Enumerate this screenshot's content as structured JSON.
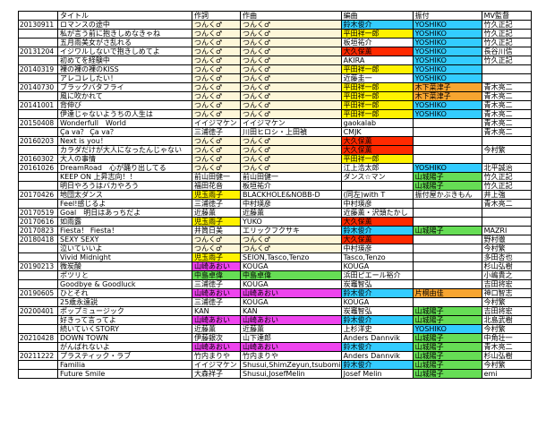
{
  "colors": {
    "beige": "#fdf6d8",
    "yellow": "#fff200",
    "red": "#ff2a00",
    "pink": "#ee44ee",
    "green": "#66dd55",
    "blue": "#33ccff",
    "orange": "#f7a530",
    "white": "#ffffff"
  },
  "headers": [
    "",
    "タイトル",
    "作詞",
    "作曲",
    "編曲",
    "振付",
    "MV監督"
  ],
  "rows": [
    {
      "date": "20130911",
      "title": "ロマンスの途中",
      "lyrics": "つんく♂",
      "composer": "つんく♂",
      "arranger": "鈴木俊介",
      "choreo": "YOSHIKO",
      "director": "竹久正記",
      "bg": {
        "lyrics": "beige",
        "composer": "beige",
        "arranger": "blue",
        "choreo": "blue"
      }
    },
    {
      "date": "",
      "title": "私が言う前に抱きしめなきゃね",
      "lyrics": "つんく♂",
      "composer": "つんく♂",
      "arranger": "平田祥一郎",
      "choreo": "YOSHIKO",
      "director": "竹久正記",
      "bg": {
        "lyrics": "beige",
        "composer": "beige",
        "arranger": "yellow",
        "choreo": "blue"
      }
    },
    {
      "date": "",
      "title": "五月雨美女がさ乱れる",
      "lyrics": "つんく♂",
      "composer": "つんく♂",
      "arranger": "板垣祐介",
      "choreo": "YOSHIKO",
      "director": "竹久正記",
      "bg": {
        "lyrics": "beige",
        "composer": "beige",
        "choreo": "blue"
      }
    },
    {
      "date": "20131204",
      "title": "イジワルしないで抱きしめてよ",
      "lyrics": "つんく♂",
      "composer": "つんく♂",
      "arranger": "大久保薫",
      "choreo": "YOSHIKO",
      "director": "長谷川信",
      "bg": {
        "lyrics": "beige",
        "composer": "beige",
        "arranger": "red",
        "choreo": "blue"
      }
    },
    {
      "date": "",
      "title": "初めてを経験中",
      "lyrics": "つんく♂",
      "composer": "つんく♂",
      "arranger": "AKIRA",
      "choreo": "YOSHIKO",
      "director": "竹久正記",
      "bg": {
        "lyrics": "beige",
        "composer": "beige",
        "choreo": "blue"
      }
    },
    {
      "date": "20140319",
      "title": "裸の裸の裸のKISS",
      "lyrics": "つんく♂",
      "composer": "つんく♂",
      "arranger": "平田祥一郎",
      "choreo": "YOSHIKO",
      "director": "",
      "bg": {
        "lyrics": "beige",
        "composer": "beige",
        "arranger": "yellow",
        "choreo": "blue"
      }
    },
    {
      "date": "",
      "title": "アレコレしたい！",
      "lyrics": "つんく♂",
      "composer": "つんく♂",
      "arranger": "近藤圭一",
      "choreo": "YOSHIKO",
      "director": "",
      "bg": {
        "lyrics": "beige",
        "composer": "beige",
        "choreo": "blue"
      }
    },
    {
      "date": "20140730",
      "title": "ブラックバタフライ",
      "lyrics": "つんく♂",
      "composer": "つんく♂",
      "arranger": "平田祥一郎",
      "choreo": "木下菜津子",
      "director": "青木亮二",
      "bg": {
        "lyrics": "beige",
        "composer": "beige",
        "arranger": "yellow",
        "choreo": "orange"
      }
    },
    {
      "date": "",
      "title": "風に吹かれて",
      "lyrics": "つんく♂",
      "composer": "つんく♂",
      "arranger": "平田祥一郎",
      "choreo": "木下菜津子",
      "director": "青木亮二",
      "bg": {
        "lyrics": "beige",
        "composer": "beige",
        "arranger": "yellow",
        "choreo": "orange"
      }
    },
    {
      "date": "20141001",
      "title": "背伸び",
      "lyrics": "つんく♂",
      "composer": "つんく♂",
      "arranger": "平田祥一郎",
      "choreo": "YOSHIKO",
      "director": "青木亮二",
      "bg": {
        "lyrics": "beige",
        "composer": "beige",
        "arranger": "yellow",
        "choreo": "blue"
      }
    },
    {
      "date": "",
      "title": "伊達じゃないようちの人生は",
      "lyrics": "つんく♂",
      "composer": "つんく♂",
      "arranger": "平田祥一郎",
      "choreo": "YOSHIKO",
      "director": "青木亮二",
      "bg": {
        "lyrics": "beige",
        "composer": "beige",
        "arranger": "yellow",
        "choreo": "blue"
      }
    },
    {
      "date": "20150408",
      "title": "Wonderfull　World",
      "lyrics": "イイジマケン",
      "composer": "イイジマケン",
      "arranger": "gaokalab",
      "choreo": "",
      "director": "青木亮二",
      "bg": {}
    },
    {
      "date": "",
      "title": "Ça va？ Ça va？",
      "lyrics": "三浦徳子",
      "composer": "川田ヒロシ・上田禎",
      "arranger": "CMJK",
      "choreo": "",
      "director": "青木亮二",
      "bg": {}
    },
    {
      "date": "20160203",
      "title": "Next is you！",
      "lyrics": "つんく♂",
      "composer": "つんく♂",
      "arranger": "大久保薫",
      "choreo": "",
      "director": "",
      "bg": {
        "lyrics": "beige",
        "composer": "beige",
        "arranger": "red"
      }
    },
    {
      "date": "",
      "title": "カラダだけが大人になったんじゃない",
      "lyrics": "つんく♂",
      "composer": "つんく♂",
      "arranger": "大久保薫",
      "choreo": "",
      "director": "今村繁",
      "bg": {
        "lyrics": "beige",
        "composer": "beige",
        "arranger": "red"
      }
    },
    {
      "date": "20160302",
      "title": "大人の事情",
      "lyrics": "つんく♂",
      "composer": "つんく♂",
      "arranger": "平田祥一郎",
      "choreo": "",
      "director": "",
      "bg": {
        "lyrics": "beige",
        "composer": "beige",
        "arranger": "yellow"
      }
    },
    {
      "date": "20161026",
      "title": "DreamRoad　心が踊り出してる",
      "lyrics": "つんく♂",
      "composer": "つんく♂",
      "arranger": "江上浩太郎",
      "choreo": "YOSHIKO",
      "director": "北平誠治",
      "bg": {
        "lyrics": "beige",
        "composer": "beige",
        "choreo": "blue"
      }
    },
    {
      "date": "",
      "title": "KEEP ON 上昇志向！！",
      "lyrics": "前山田健一",
      "composer": "前山田健一",
      "arranger": "ダンス☆マン",
      "choreo": "山城陽子",
      "director": "竹久正記",
      "bg": {
        "choreo": "green"
      }
    },
    {
      "date": "",
      "title": "明日やろうはバカやろう",
      "lyrics": "福田花音",
      "composer": "板垣祐介",
      "arranger": "",
      "choreo": "山城陽子",
      "director": "竹久正記",
      "bg": {
        "choreo": "green"
      }
    },
    {
      "date": "20170426",
      "title": "地団太ダンス",
      "lyrics": "児玉雨子",
      "composer": "BLACKHOLE&NOBB-D",
      "arranger": "(同左)with T",
      "choreo": "振付屋かぶきもん",
      "director": "井上強",
      "bg": {
        "lyrics": "yellow"
      }
    },
    {
      "date": "",
      "title": "Feel!感じるよ",
      "lyrics": "三浦徳子",
      "composer": "中村瑛彦",
      "arranger": "中村瑛彦",
      "choreo": "",
      "director": "青木亮二",
      "bg": {}
    },
    {
      "date": "20170519",
      "title": "Goal　明日はあっちだよ",
      "lyrics": "近藤薫",
      "composer": "近藤薫",
      "arranger": "近藤薫・沢頭たかし",
      "choreo": "",
      "director": "",
      "bg": {}
    },
    {
      "date": "20170616",
      "title": "如雨露",
      "lyrics": "児玉雨子",
      "composer": "YUKO",
      "arranger": "大久保薫",
      "choreo": "",
      "director": "",
      "bg": {
        "lyrics": "yellow",
        "arranger": "red"
      }
    },
    {
      "date": "20170823",
      "title": "Fiesta！ Fiesta！",
      "lyrics": "井筒日美",
      "composer": "エリックフクサキ",
      "arranger": "鈴木俊介",
      "choreo": "山城陽子",
      "director": "MAZRI",
      "bg": {
        "arranger": "blue",
        "choreo": "green"
      }
    },
    {
      "date": "20180418",
      "title": "SEXY SEXY",
      "lyrics": "つんく♂",
      "composer": "つんく♂",
      "arranger": "大久保薫",
      "choreo": "",
      "director": "野村徹",
      "bg": {
        "lyrics": "beige",
        "composer": "beige",
        "arranger": "red"
      }
    },
    {
      "date": "",
      "title": "泣いていいよ",
      "lyrics": "つんく♂",
      "composer": "つんく♂",
      "arranger": "中村瑛彦",
      "choreo": "",
      "director": "今村繁",
      "bg": {
        "lyrics": "beige",
        "composer": "beige"
      }
    },
    {
      "date": "",
      "title": "Vivid Midnight",
      "lyrics": "児玉雨子",
      "composer": "SEION,Tasco,Tenzo",
      "arranger": "Tasco,Tenzo",
      "choreo": "",
      "director": "多田杏也",
      "bg": {
        "lyrics": "yellow"
      }
    },
    {
      "date": "20190213",
      "title": "微炭酸",
      "lyrics": "山崎あおい",
      "composer": "KOUGA",
      "arranger": "KOUGA",
      "choreo": "",
      "director": "杉山弘樹",
      "bg": {
        "lyrics": "pink"
      }
    },
    {
      "date": "",
      "title": "ポツリと",
      "lyrics": "中島卓偉",
      "composer": "中島卓偉",
      "arranger": "浜田ピエール裕介",
      "choreo": "",
      "director": "小嶋貴之",
      "bg": {
        "lyrics": "green",
        "composer": "green"
      }
    },
    {
      "date": "",
      "title": "Goodbye & Goodluck",
      "lyrics": "三浦徳子",
      "composer": "KOUGA",
      "arranger": "炭竈智弘",
      "choreo": "",
      "director": "吉田将宏",
      "bg": {}
    },
    {
      "date": "20190605",
      "title": "ひとそれ",
      "lyrics": "山崎あおい",
      "composer": "山崎あおい",
      "arranger": "鈴木俊介",
      "choreo": "片桐由佳",
      "director": "神口智志",
      "bg": {
        "lyrics": "pink",
        "composer": "pink",
        "arranger": "blue",
        "choreo": "orange"
      }
    },
    {
      "date": "",
      "title": "25歳永遠説",
      "lyrics": "三浦徳子",
      "composer": "KOUGA",
      "arranger": "KOUGA",
      "choreo": "",
      "director": "今村繁",
      "bg": {}
    },
    {
      "date": "20200401",
      "title": "ポップミュージック",
      "lyrics": "KAN",
      "composer": "KAN",
      "arranger": "炭竈智弘",
      "choreo": "山城陽子",
      "director": "吉田将宏",
      "bg": {
        "choreo": "green"
      }
    },
    {
      "date": "",
      "title": "好きって言ってよ",
      "lyrics": "山崎あおい",
      "composer": "山崎あおい",
      "arranger": "鈴木俊介",
      "choreo": "山城陽子",
      "director": "北島武樹",
      "bg": {
        "lyrics": "pink",
        "composer": "pink",
        "arranger": "blue",
        "choreo": "green"
      }
    },
    {
      "date": "",
      "title": "続いていくSTORY",
      "lyrics": "近藤薫",
      "composer": "近藤薫",
      "arranger": "上杉洋史",
      "choreo": "YOSHIKO",
      "director": "今村繁",
      "bg": {
        "choreo": "blue"
      }
    },
    {
      "date": "20210428",
      "title": "DOWN TOWN",
      "lyrics": "伊藤銀次",
      "composer": "山下達郎",
      "arranger": "Anders Dannvik",
      "choreo": "山城陽子",
      "director": "中角壮一",
      "bg": {
        "choreo": "green"
      }
    },
    {
      "date": "",
      "title": "がんばれないよ",
      "lyrics": "山崎あおい",
      "composer": "山崎あおい",
      "arranger": "鈴木俊介",
      "choreo": "山城陽子",
      "director": "青木亮二",
      "bg": {
        "lyrics": "pink",
        "composer": "pink",
        "arranger": "blue",
        "choreo": "green"
      }
    },
    {
      "date": "20211222",
      "title": "プラスティック・ラブ",
      "lyrics": "竹内まりや",
      "composer": "竹内まりや",
      "arranger": "Anders Dannvik",
      "choreo": "山城陽子",
      "director": "杉山弘樹",
      "bg": {
        "choreo": "green"
      }
    },
    {
      "date": "",
      "title": "Familia",
      "lyrics": "イイジマケン",
      "composer": "Shusui,ShimZeyun,tsubomi",
      "arranger": "鈴木俊介",
      "choreo": "山城陽子",
      "director": "今村繁",
      "bg": {
        "arranger": "blue",
        "choreo": "green"
      }
    },
    {
      "date": "",
      "title": "Future Smile",
      "lyrics": "大森祥子",
      "composer": "Shusui,JosefMelin",
      "arranger": "Josef Melin",
      "choreo": "山城陽子",
      "director": "emi",
      "bg": {
        "choreo": "green"
      }
    }
  ]
}
